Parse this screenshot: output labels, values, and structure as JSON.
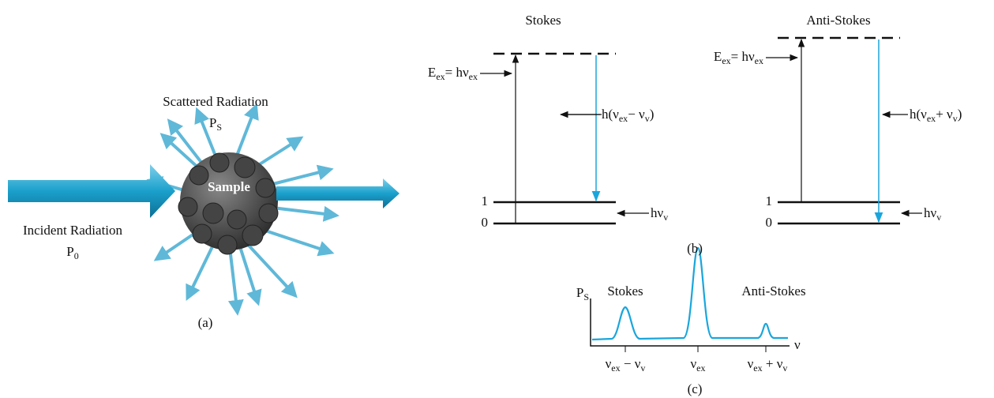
{
  "panel_a": {
    "scattered_title": [
      {
        "t": "Scattered Radiation"
      }
    ],
    "scattered_symbol": [
      {
        "t": "P"
      },
      {
        "s": "S"
      }
    ],
    "sample_label": [
      {
        "t": "Sample"
      }
    ],
    "incident_title": [
      {
        "t": "Incident Radiation"
      }
    ],
    "incident_symbol": [
      {
        "t": "P"
      },
      {
        "s": "0"
      }
    ],
    "caption": [
      {
        "t": "(a)"
      }
    ]
  },
  "panel_b": {
    "stokes": {
      "title": [
        {
          "t": "Stokes"
        }
      ],
      "excitation": [
        {
          "t": "E"
        },
        {
          "s": "ex"
        },
        {
          "t": "= hν"
        },
        {
          "s": "ex"
        }
      ],
      "emission": [
        {
          "t": "h(ν"
        },
        {
          "s": "ex"
        },
        {
          "t": "− ν"
        },
        {
          "s": "v"
        },
        {
          "t": ")"
        }
      ],
      "vibration": [
        {
          "t": "hν"
        },
        {
          "s": "v"
        }
      ],
      "level_1": [
        {
          "t": "1"
        }
      ],
      "level_0": [
        {
          "t": "0"
        }
      ]
    },
    "anti_stokes": {
      "title": [
        {
          "t": "Anti-Stokes"
        }
      ],
      "excitation": [
        {
          "t": "E"
        },
        {
          "s": "ex"
        },
        {
          "t": "= hν"
        },
        {
          "s": "ex"
        }
      ],
      "emission": [
        {
          "t": "h(ν"
        },
        {
          "s": "ex"
        },
        {
          "t": "+ ν"
        },
        {
          "s": "v"
        },
        {
          "t": ")"
        }
      ],
      "vibration": [
        {
          "t": "hν"
        },
        {
          "s": "v"
        }
      ],
      "level_1": [
        {
          "t": "1"
        }
      ],
      "level_0": [
        {
          "t": "0"
        }
      ]
    },
    "caption": [
      {
        "t": "(b)"
      }
    ]
  },
  "panel_c": {
    "y_label": [
      {
        "t": "P"
      },
      {
        "s": "S"
      }
    ],
    "x_label": [
      {
        "t": "ν"
      }
    ],
    "stokes_label": [
      {
        "t": "Stokes"
      }
    ],
    "anti_stokes_label": [
      {
        "t": "Anti-Stokes"
      }
    ],
    "tick_stokes": [
      {
        "t": "ν"
      },
      {
        "s": "ex"
      },
      {
        "t": " − ν"
      },
      {
        "s": "v"
      }
    ],
    "tick_center": [
      {
        "t": "ν"
      },
      {
        "s": "ex"
      }
    ],
    "tick_anti_stokes": [
      {
        "t": "ν"
      },
      {
        "s": "ex"
      },
      {
        "t": " + ν"
      },
      {
        "s": "v"
      }
    ],
    "caption": [
      {
        "t": "(c)"
      }
    ]
  }
}
